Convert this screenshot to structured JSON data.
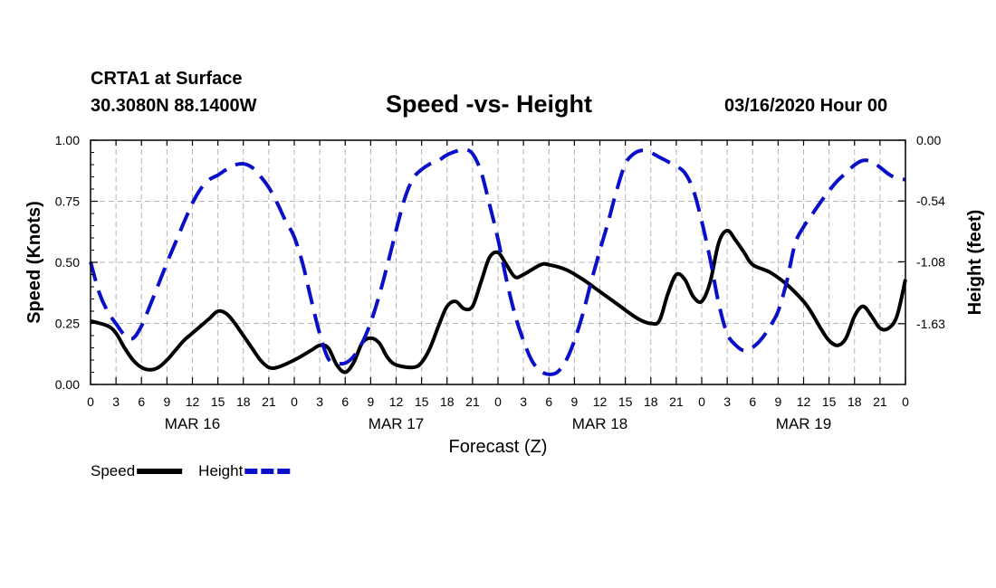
{
  "header": {
    "station": "CRTA1 at Surface",
    "coords": "30.3080N 88.1400W",
    "title": "Speed -vs- Height",
    "datetime": "03/16/2020 Hour 00"
  },
  "chart_data": {
    "type": "line",
    "title": "Speed -vs- Height",
    "xlabel": "Forecast (Z)",
    "ylabel_left": "Speed (Knots)",
    "ylabel_right": "Height (feet)",
    "x_hours_range": [
      0,
      96
    ],
    "x_tick_labels": [
      "0",
      "3",
      "6",
      "9",
      "12",
      "15",
      "18",
      "21",
      "0",
      "3",
      "6",
      "9",
      "12",
      "15",
      "18",
      "21",
      "0",
      "3",
      "6",
      "9",
      "12",
      "15",
      "18",
      "21",
      "0",
      "3",
      "6",
      "9",
      "12",
      "15",
      "18",
      "21",
      "0"
    ],
    "date_labels": [
      {
        "label": "MAR 16",
        "hour": 12
      },
      {
        "label": "MAR 17",
        "hour": 36
      },
      {
        "label": "MAR 18",
        "hour": 60
      },
      {
        "label": "MAR 19",
        "hour": 84
      }
    ],
    "left_axis": {
      "range": [
        0,
        1.0
      ],
      "ticks": [
        "0.00",
        "0.25",
        "0.50",
        "0.75",
        "1.00"
      ],
      "tick_values": [
        0,
        0.25,
        0.5,
        0.75,
        1.0
      ]
    },
    "right_axis": {
      "range": [
        -2.17,
        0.0
      ],
      "ticks": [
        "0.00",
        "-0.54",
        "-1.08",
        "-1.63"
      ],
      "tick_values": [
        0.0,
        -0.54,
        -1.08,
        -1.63
      ]
    },
    "grid": true,
    "series": [
      {
        "name": "Speed",
        "color": "#000000",
        "style": "solid",
        "axis": "left",
        "points": [
          [
            0,
            0.26
          ],
          [
            2,
            0.24
          ],
          [
            3,
            0.21
          ],
          [
            4,
            0.15
          ],
          [
            5,
            0.1
          ],
          [
            6,
            0.07
          ],
          [
            7,
            0.06
          ],
          [
            8,
            0.07
          ],
          [
            9,
            0.1
          ],
          [
            10,
            0.14
          ],
          [
            11,
            0.18
          ],
          [
            12,
            0.21
          ],
          [
            13,
            0.24
          ],
          [
            14,
            0.27
          ],
          [
            15,
            0.3
          ],
          [
            16,
            0.29
          ],
          [
            17,
            0.25
          ],
          [
            18,
            0.2
          ],
          [
            19,
            0.15
          ],
          [
            20,
            0.1
          ],
          [
            21,
            0.07
          ],
          [
            22,
            0.07
          ],
          [
            24,
            0.1
          ],
          [
            26,
            0.14
          ],
          [
            27,
            0.16
          ],
          [
            28,
            0.15
          ],
          [
            29,
            0.08
          ],
          [
            30,
            0.05
          ],
          [
            31,
            0.09
          ],
          [
            32,
            0.17
          ],
          [
            33,
            0.19
          ],
          [
            34,
            0.17
          ],
          [
            35,
            0.11
          ],
          [
            36,
            0.08
          ],
          [
            38,
            0.07
          ],
          [
            39,
            0.09
          ],
          [
            40,
            0.15
          ],
          [
            41,
            0.24
          ],
          [
            42,
            0.32
          ],
          [
            43,
            0.34
          ],
          [
            44,
            0.31
          ],
          [
            45,
            0.32
          ],
          [
            46,
            0.42
          ],
          [
            47,
            0.52
          ],
          [
            48,
            0.54
          ],
          [
            49,
            0.49
          ],
          [
            50,
            0.44
          ],
          [
            51,
            0.45
          ],
          [
            53,
            0.49
          ],
          [
            54,
            0.49
          ],
          [
            56,
            0.47
          ],
          [
            58,
            0.43
          ],
          [
            60,
            0.38
          ],
          [
            62,
            0.33
          ],
          [
            64,
            0.28
          ],
          [
            65,
            0.26
          ],
          [
            66,
            0.25
          ],
          [
            67,
            0.26
          ],
          [
            68,
            0.37
          ],
          [
            69,
            0.45
          ],
          [
            70,
            0.43
          ],
          [
            71,
            0.36
          ],
          [
            72,
            0.34
          ],
          [
            73,
            0.42
          ],
          [
            74,
            0.58
          ],
          [
            75,
            0.63
          ],
          [
            76,
            0.59
          ],
          [
            77,
            0.54
          ],
          [
            78,
            0.49
          ],
          [
            80,
            0.46
          ],
          [
            82,
            0.41
          ],
          [
            84,
            0.34
          ],
          [
            85,
            0.29
          ],
          [
            86,
            0.23
          ],
          [
            87,
            0.18
          ],
          [
            88,
            0.16
          ],
          [
            89,
            0.19
          ],
          [
            90,
            0.28
          ],
          [
            91,
            0.32
          ],
          [
            92,
            0.28
          ],
          [
            93,
            0.23
          ],
          [
            94,
            0.23
          ],
          [
            95,
            0.28
          ],
          [
            96,
            0.43
          ]
        ]
      },
      {
        "name": "Height",
        "color": "#0a10c8",
        "style": "dashed",
        "axis": "right",
        "points": [
          [
            0,
            -1.08
          ],
          [
            1,
            -1.35
          ],
          [
            2,
            -1.52
          ],
          [
            3,
            -1.63
          ],
          [
            4,
            -1.73
          ],
          [
            5,
            -1.76
          ],
          [
            6,
            -1.65
          ],
          [
            7,
            -1.47
          ],
          [
            8,
            -1.28
          ],
          [
            9,
            -1.09
          ],
          [
            10,
            -0.91
          ],
          [
            11,
            -0.73
          ],
          [
            12,
            -0.56
          ],
          [
            13,
            -0.43
          ],
          [
            14,
            -0.35
          ],
          [
            15,
            -0.31
          ],
          [
            16,
            -0.26
          ],
          [
            17,
            -0.22
          ],
          [
            18,
            -0.21
          ],
          [
            19,
            -0.24
          ],
          [
            20,
            -0.32
          ],
          [
            21,
            -0.42
          ],
          [
            22,
            -0.56
          ],
          [
            23,
            -0.72
          ],
          [
            24,
            -0.86
          ],
          [
            25,
            -1.1
          ],
          [
            26,
            -1.42
          ],
          [
            27,
            -1.72
          ],
          [
            28,
            -1.94
          ],
          [
            29,
            -1.98
          ],
          [
            30,
            -1.98
          ],
          [
            31,
            -1.92
          ],
          [
            32,
            -1.8
          ],
          [
            33,
            -1.62
          ],
          [
            34,
            -1.38
          ],
          [
            35,
            -1.1
          ],
          [
            36,
            -0.8
          ],
          [
            37,
            -0.52
          ],
          [
            38,
            -0.34
          ],
          [
            39,
            -0.26
          ],
          [
            40,
            -0.21
          ],
          [
            41,
            -0.18
          ],
          [
            42,
            -0.13
          ],
          [
            43,
            -0.1
          ],
          [
            44,
            -0.08
          ],
          [
            45,
            -0.12
          ],
          [
            46,
            -0.28
          ],
          [
            47,
            -0.57
          ],
          [
            48,
            -0.88
          ],
          [
            49,
            -1.24
          ],
          [
            50,
            -1.55
          ],
          [
            51,
            -1.78
          ],
          [
            52,
            -1.96
          ],
          [
            53,
            -2.05
          ],
          [
            54,
            -2.08
          ],
          [
            55,
            -2.06
          ],
          [
            56,
            -1.96
          ],
          [
            57,
            -1.78
          ],
          [
            58,
            -1.54
          ],
          [
            59,
            -1.25
          ],
          [
            60,
            -0.98
          ],
          [
            61,
            -0.72
          ],
          [
            62,
            -0.44
          ],
          [
            63,
            -0.21
          ],
          [
            64,
            -0.12
          ],
          [
            65,
            -0.09
          ],
          [
            66,
            -0.11
          ],
          [
            67,
            -0.15
          ],
          [
            68,
            -0.19
          ],
          [
            69,
            -0.23
          ],
          [
            70,
            -0.29
          ],
          [
            71,
            -0.44
          ],
          [
            72,
            -0.72
          ],
          [
            73,
            -1.06
          ],
          [
            74,
            -1.45
          ],
          [
            75,
            -1.72
          ],
          [
            76,
            -1.82
          ],
          [
            77,
            -1.87
          ],
          [
            78,
            -1.84
          ],
          [
            79,
            -1.77
          ],
          [
            80,
            -1.66
          ],
          [
            81,
            -1.52
          ],
          [
            82,
            -1.26
          ],
          [
            83,
            -0.92
          ],
          [
            84,
            -0.77
          ],
          [
            85,
            -0.66
          ],
          [
            86,
            -0.55
          ],
          [
            87,
            -0.45
          ],
          [
            88,
            -0.36
          ],
          [
            89,
            -0.29
          ],
          [
            90,
            -0.22
          ],
          [
            91,
            -0.18
          ],
          [
            92,
            -0.19
          ],
          [
            93,
            -0.24
          ],
          [
            94,
            -0.3
          ],
          [
            95,
            -0.34
          ],
          [
            96,
            -0.35
          ]
        ]
      }
    ],
    "legend": [
      {
        "label": "Speed",
        "color": "#000000",
        "style": "solid"
      },
      {
        "label": "Height",
        "color": "#0a10c8",
        "style": "dashed"
      }
    ],
    "legend_position": "bottom-left"
  }
}
